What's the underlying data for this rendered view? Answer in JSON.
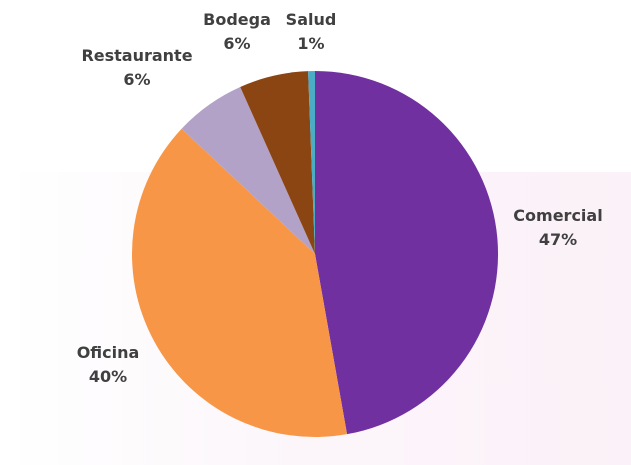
{
  "chart_data": {
    "type": "pie",
    "title": "",
    "start_angle_deg": 0,
    "direction": "clockwise",
    "legend": "none",
    "slices": [
      {
        "label": "Comercial",
        "percent_label": "47%",
        "value": 47.2,
        "color": "#7030a0"
      },
      {
        "label": "Oficina",
        "percent_label": "40%",
        "value": 39.8,
        "color": "#f79646"
      },
      {
        "label": "Restaurante",
        "percent_label": "6%",
        "value": 6.3,
        "color": "#b3a2c7"
      },
      {
        "label": "Bodega",
        "percent_label": "6%",
        "value": 6.1,
        "color": "#8b4513"
      },
      {
        "label": "Salud",
        "percent_label": "1%",
        "value": 0.6,
        "color": "#4bacc6"
      }
    ]
  }
}
